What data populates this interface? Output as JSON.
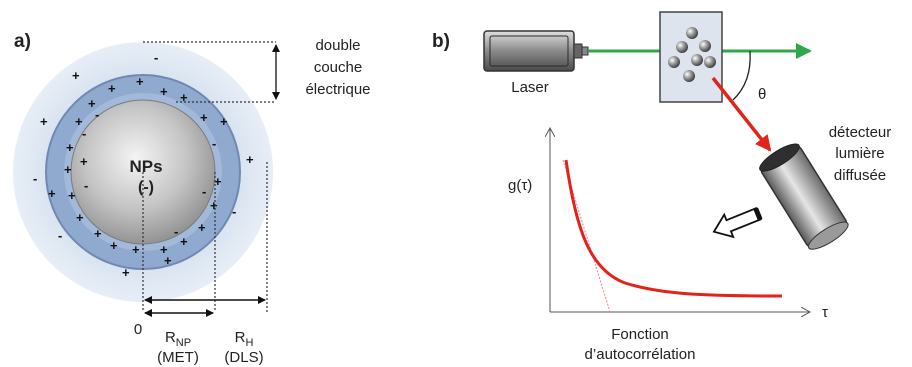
{
  "panel_a": {
    "label": "a)",
    "core_label": "NPs",
    "core_charge": "(-)",
    "double_layer": [
      "double",
      "couche",
      "électrique"
    ],
    "origin_label": "0",
    "r_np": {
      "main": "R",
      "sub": "NP",
      "method": "(MET)"
    },
    "r_h": {
      "main": "R",
      "sub": "H",
      "method": "(DLS)"
    },
    "colors": {
      "outer_halo": "#cfdcec",
      "shell": "#8fa9cf",
      "core": "#bdbdbd"
    }
  },
  "panel_b": {
    "label": "b)",
    "laser_label": "Laser",
    "angle_label": "θ",
    "detector_label": [
      "détecteur",
      "lumière",
      "diffusée"
    ],
    "y_axis_label": "g(τ)",
    "x_axis_label": "τ",
    "curve_caption": [
      "Fonction",
      "d’autocorrélation"
    ],
    "colors": {
      "beam": "#2ea84a",
      "scattered": "#e2231a",
      "curve": "#e2231a"
    }
  }
}
